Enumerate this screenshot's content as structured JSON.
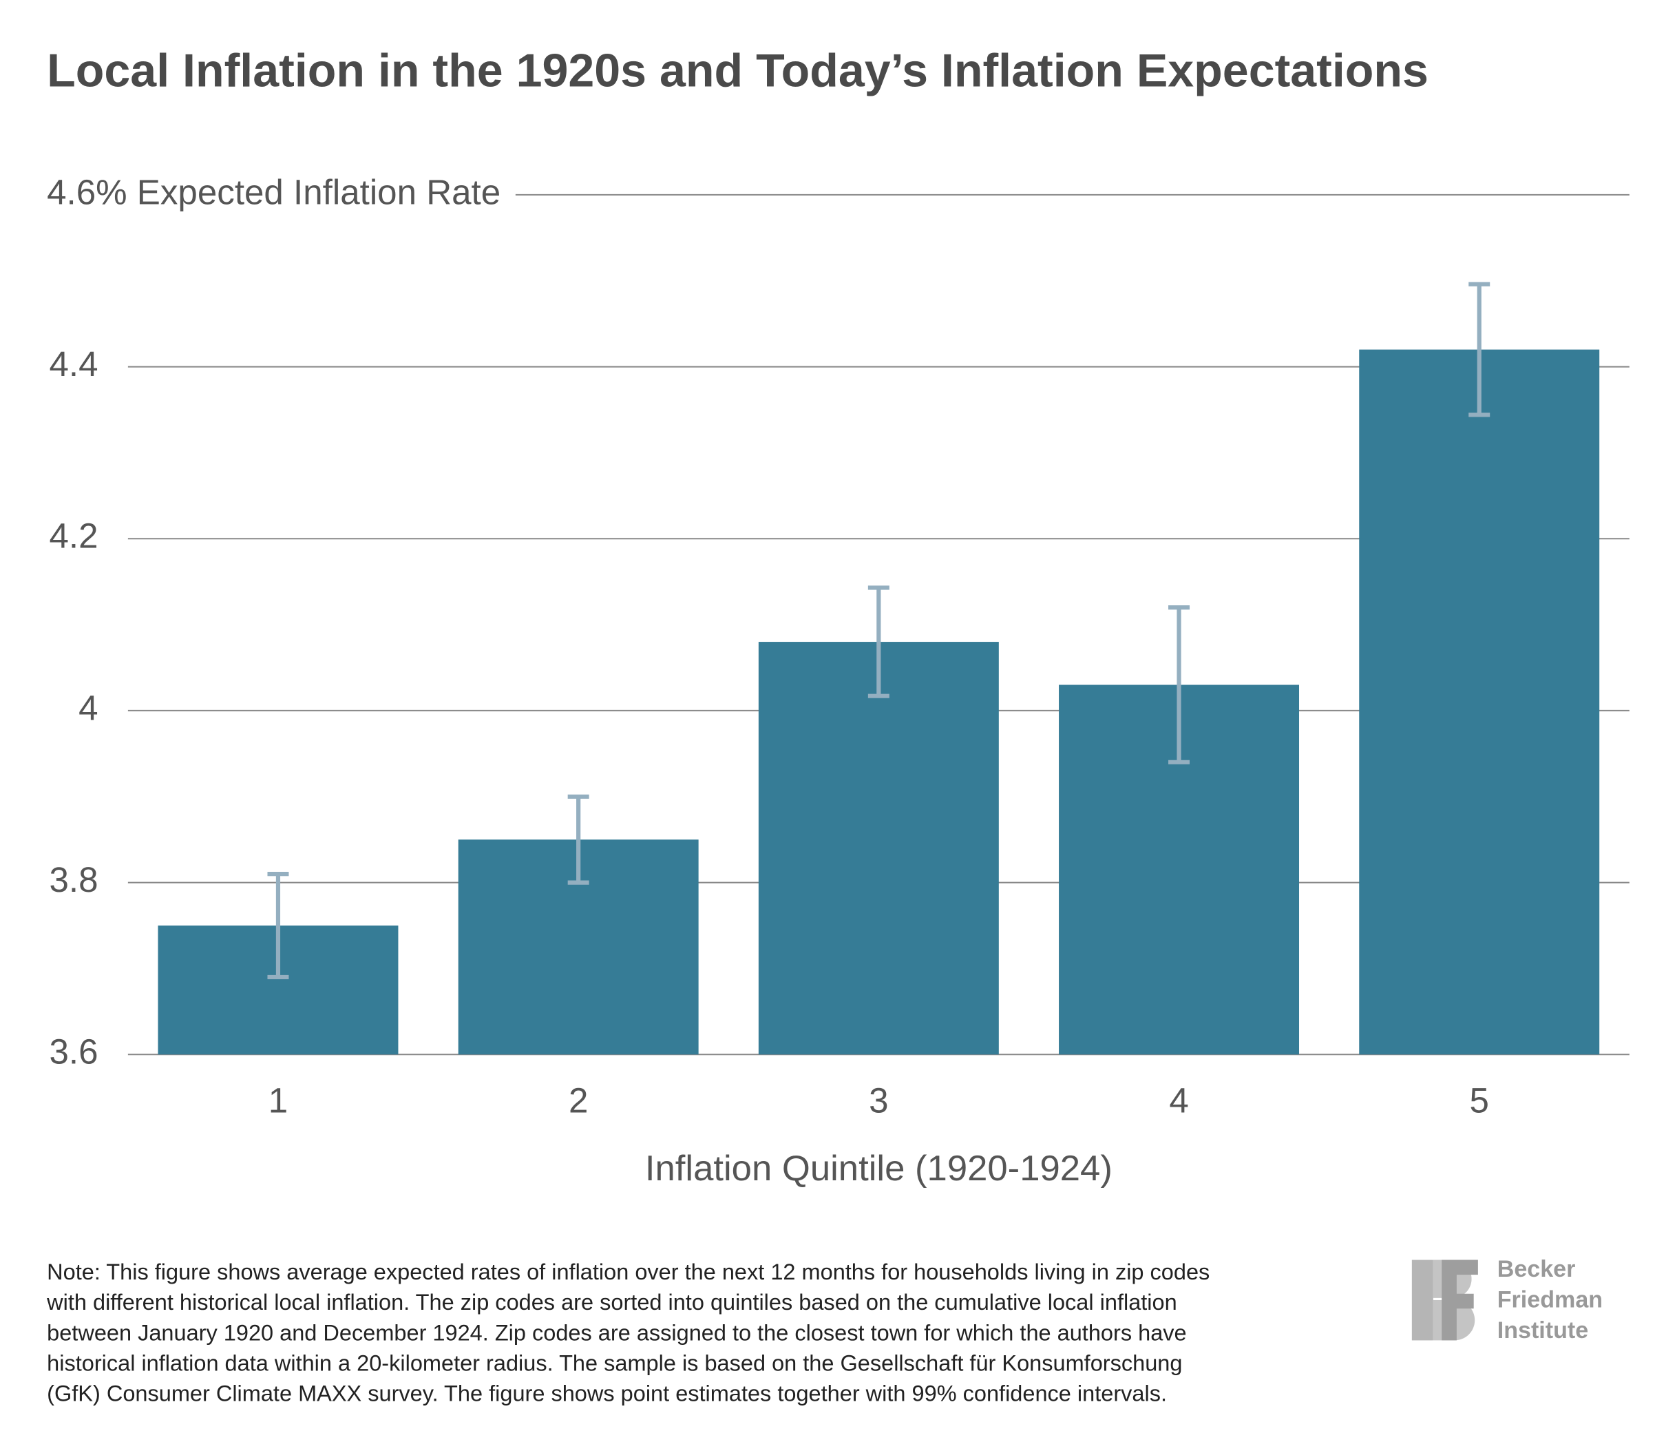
{
  "chart_data": {
    "type": "bar",
    "title": "Local Inflation in the 1920s and Today’s Inflation Expectations",
    "categories": [
      "1",
      "2",
      "3",
      "4",
      "5"
    ],
    "values": [
      3.75,
      3.85,
      4.08,
      4.03,
      4.42
    ],
    "errors": [
      0.06,
      0.05,
      0.063,
      0.09,
      0.076
    ],
    "color": "#367c96",
    "error_color": "#94afc0",
    "ylim": [
      3.6,
      4.6
    ],
    "yticks": [
      3.6,
      3.8,
      4,
      4.2,
      4.4,
      {
        "value": 4.6,
        "label": "4.6% Expected Inflation Rate"
      }
    ],
    "grid": true,
    "xlabel": "Inflation Quintile (1920-1924)",
    "note": [
      "Note: This figure shows average expected rates of inflation over the next 12 months for households living in zip codes",
      "with different historical local inflation. The zip codes are sorted into quintiles based on the cumulative local inflation",
      "between January 1920 and December 1924. Zip codes are assigned to the closest town for which the authors have",
      "historical inflation data within a 20-kilometer radius. The sample is based on the Gesellschaft für Konsumforschung",
      "(GfK) Consumer Climate MAXX survey. The figure shows point estimates together with 99% confidence intervals."
    ]
  },
  "logo": [
    "Becker",
    "Friedman",
    "Institute"
  ]
}
